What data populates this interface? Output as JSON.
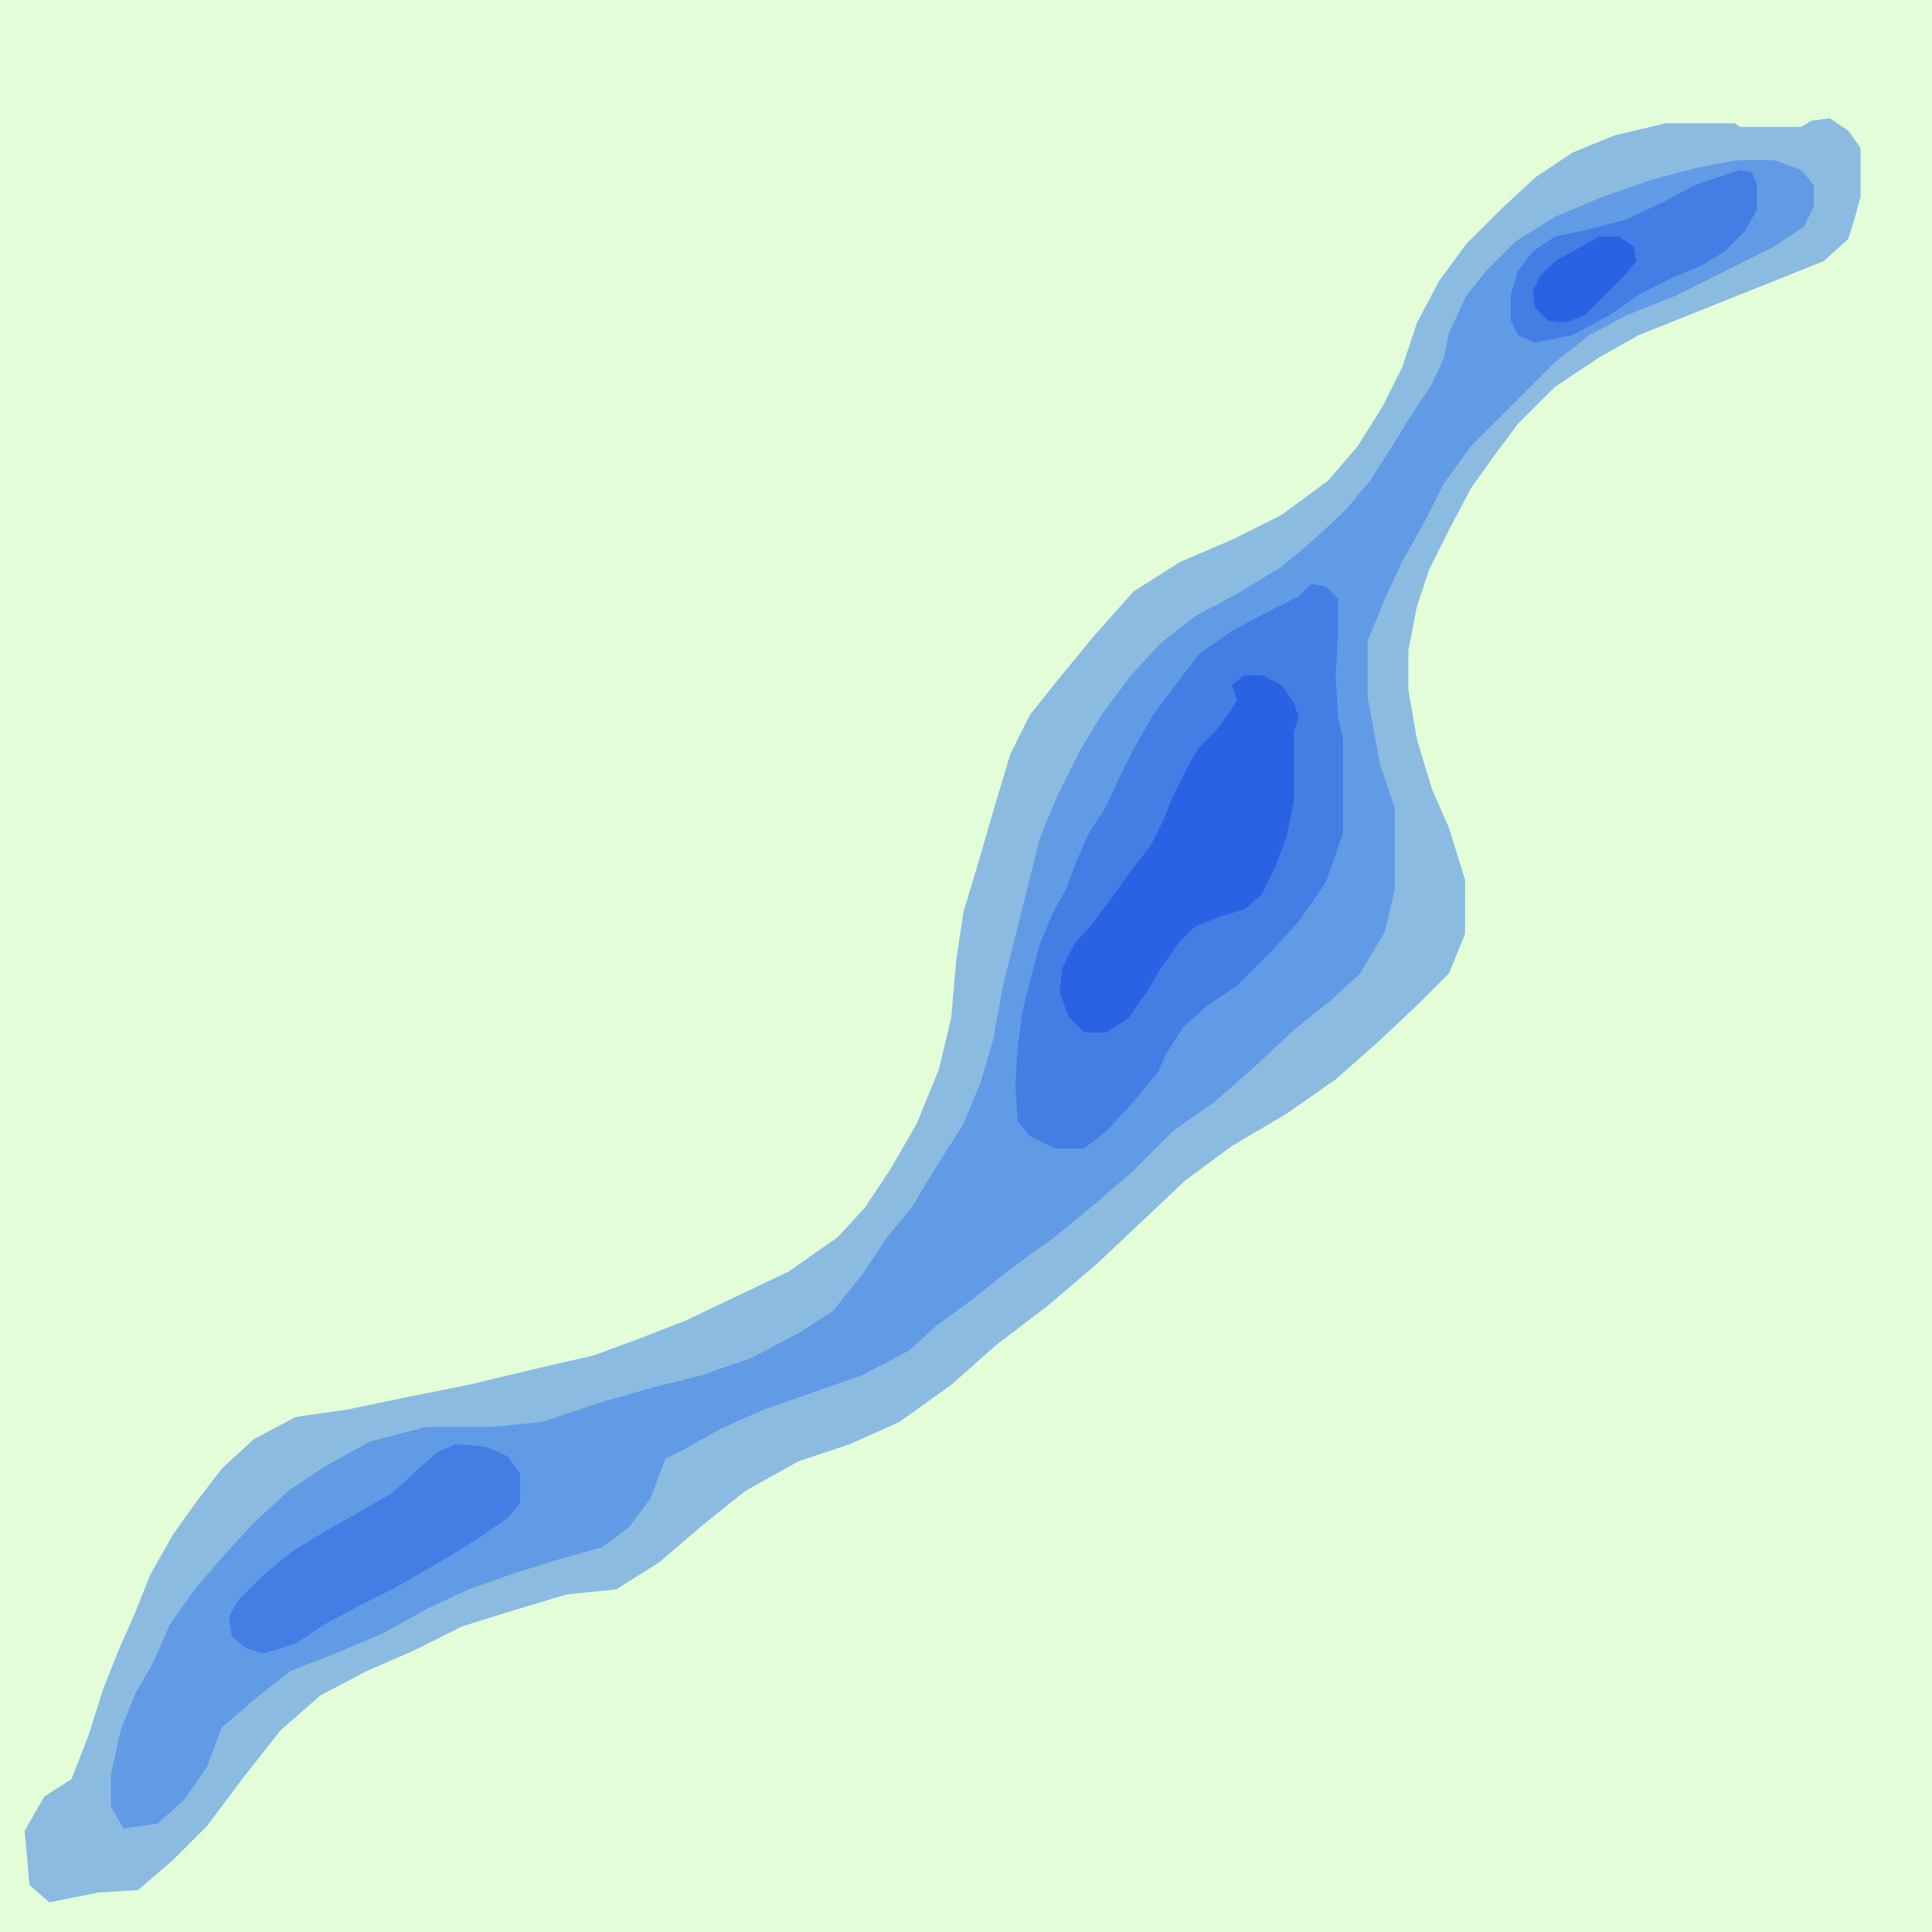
{
  "map": {
    "type": "bathymetric-contour",
    "colors": {
      "land": "#e2fdd8",
      "depth_1": "#8cbbe2",
      "depth_2": "#619be6",
      "depth_3": "#447de4",
      "depth_4": "#2963e4"
    },
    "water_body": {
      "bands": 4,
      "deep_pools": 3
    }
  }
}
